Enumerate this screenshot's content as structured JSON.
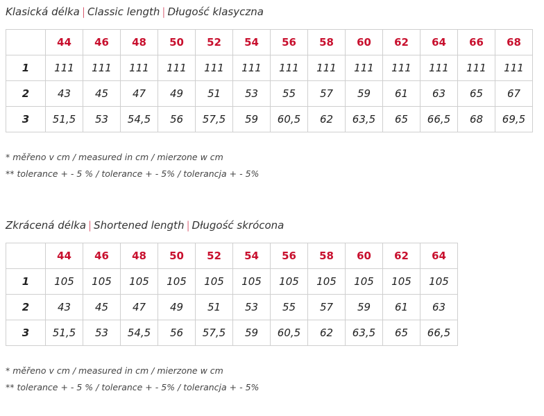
{
  "separator": "|",
  "sections": [
    {
      "title": [
        "Klasická délka",
        "Classic length",
        "Długość klasyczna"
      ],
      "table": {
        "header": [
          "44",
          "46",
          "48",
          "50",
          "52",
          "54",
          "56",
          "58",
          "60",
          "62",
          "64",
          "66",
          "68"
        ],
        "rows": [
          [
            "1",
            "111",
            "111",
            "111",
            "111",
            "111",
            "111",
            "111",
            "111",
            "111",
            "111",
            "111",
            "111",
            "111"
          ],
          [
            "2",
            "43",
            "45",
            "47",
            "49",
            "51",
            "53",
            "55",
            "57",
            "59",
            "61",
            "63",
            "65",
            "67"
          ],
          [
            "3",
            "51,5",
            "53",
            "54,5",
            "56",
            "57,5",
            "59",
            "60,5",
            "62",
            "63,5",
            "65",
            "66,5",
            "68",
            "69,5"
          ]
        ]
      },
      "notes": [
        "* měřeno v cm / measured in cm / mierzone w cm",
        "** tolerance + - 5 % / tolerance + - 5% / tolerancja + - 5%"
      ]
    },
    {
      "title": [
        "Zkrácená délka",
        "Shortened length",
        "Długość skrócona"
      ],
      "table": {
        "header": [
          "44",
          "46",
          "48",
          "50",
          "52",
          "54",
          "56",
          "58",
          "60",
          "62",
          "64"
        ],
        "rows": [
          [
            "1",
            "105",
            "105",
            "105",
            "105",
            "105",
            "105",
            "105",
            "105",
            "105",
            "105",
            "105"
          ],
          [
            "2",
            "43",
            "45",
            "47",
            "49",
            "51",
            "53",
            "55",
            "57",
            "59",
            "61",
            "63"
          ],
          [
            "3",
            "51,5",
            "53",
            "54,5",
            "56",
            "57,5",
            "59",
            "60,5",
            "62",
            "63,5",
            "65",
            "66,5"
          ]
        ]
      },
      "notes": [
        "* měřeno v cm / measured in cm / mierzone w cm",
        "** tolerance + - 5 % / tolerance + - 5% / tolerancja + - 5%"
      ]
    }
  ]
}
